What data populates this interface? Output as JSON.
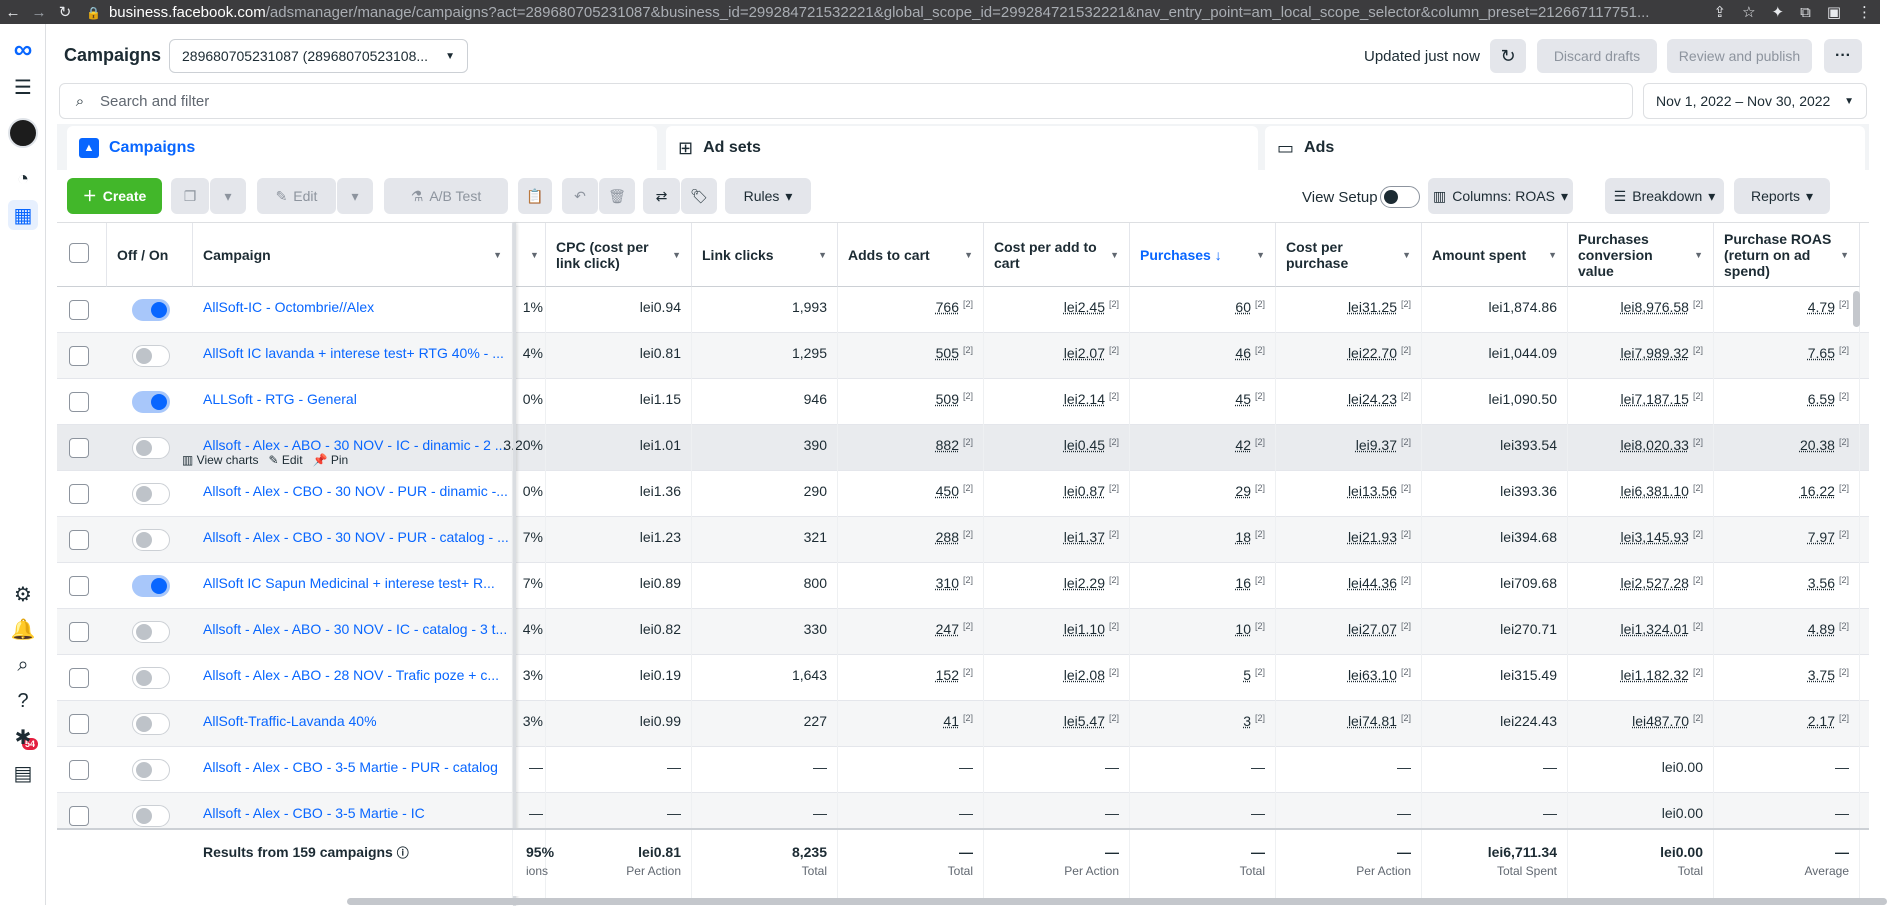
{
  "browser": {
    "url_host": "business.facebook.com",
    "url_rest": "/adsmanager/manage/campaigns?act=289680705231087&business_id=299284721532221&global_scope_id=299284721532221&nav_entry_point=am_local_scope_selector&column_preset=212667117751..."
  },
  "header": {
    "title": "Campaigns",
    "account": "289680705231087 (28968070523108...",
    "updated": "Updated just now",
    "discard_label": "Discard drafts",
    "publish_label": "Review and publish",
    "more_label": "···"
  },
  "rail": {
    "notification_count": "54"
  },
  "search": {
    "placeholder": "Search and filter",
    "date_range": "Nov 1, 2022 – Nov 30, 2022"
  },
  "level_tabs": {
    "campaigns": "Campaigns",
    "adsets": "Ad sets",
    "ads": "Ads"
  },
  "toolbar": {
    "create": "Create",
    "edit": "Edit",
    "ab_test": "A/B Test",
    "rules": "Rules",
    "view_setup": "View Setup",
    "columns": "Columns: ROAS",
    "breakdown": "Breakdown",
    "reports": "Reports"
  },
  "columns": {
    "off_on": "Off / On",
    "campaign": "Campaign",
    "cpc": "CPC (cost per link click)",
    "link_clicks": "Link clicks",
    "adds_to_cart": "Adds to cart",
    "cost_per_add": "Cost per add to cart",
    "purchases": "Purchases ↓",
    "cost_per_purchase": "Cost per purchase",
    "amount_spent": "Amount spent",
    "conv_value": "Purchases conversion value",
    "roas": "Purchase ROAS (return on ad spend)"
  },
  "row_actions": {
    "view_charts": "View charts",
    "edit": "Edit",
    "pin": "Pin"
  },
  "attribution_mark": "[2]",
  "rows": [
    {
      "on": true,
      "name": "AllSoft-IC - Octombrie//Alex",
      "ctr": "1%",
      "cpc": "lei0.94",
      "clicks": "1,993",
      "adds": "766",
      "cpa": "lei2.45",
      "purchases": "60",
      "cpp": "lei31.25",
      "spent": "lei1,874.86",
      "value": "lei8,976.58",
      "roas": "4.79"
    },
    {
      "on": false,
      "name": "AllSoft IC lavanda + interese test+ RTG 40% - ...",
      "ctr": "4%",
      "cpc": "lei0.81",
      "clicks": "1,295",
      "adds": "505",
      "cpa": "lei2.07",
      "purchases": "46",
      "cpp": "lei22.70",
      "spent": "lei1,044.09",
      "value": "lei7,989.32",
      "roas": "7.65"
    },
    {
      "on": true,
      "name": "ALLSoft - RTG - General",
      "ctr": "0%",
      "cpc": "lei1.15",
      "clicks": "946",
      "adds": "509",
      "cpa": "lei2.14",
      "purchases": "45",
      "cpp": "lei24.23",
      "spent": "lei1,090.50",
      "value": "lei7,187.15",
      "roas": "6.59"
    },
    {
      "on": false,
      "name": "Allsoft - Alex - ABO - 30 NOV - IC - dinamic - 2 ...",
      "ctr": "3.20%",
      "cpc": "lei1.01",
      "clicks": "390",
      "adds": "882",
      "cpa": "lei0.45",
      "purchases": "42",
      "cpp": "lei9.37",
      "spent": "lei393.54",
      "value": "lei8,020.33",
      "roas": "20.38"
    },
    {
      "on": false,
      "name": "Allsoft - Alex - CBO - 30 NOV - PUR - dinamic -...",
      "ctr": "0%",
      "cpc": "lei1.36",
      "clicks": "290",
      "adds": "450",
      "cpa": "lei0.87",
      "purchases": "29",
      "cpp": "lei13.56",
      "spent": "lei393.36",
      "value": "lei6,381.10",
      "roas": "16.22"
    },
    {
      "on": false,
      "name": "Allsoft - Alex - CBO - 30 NOV - PUR - catalog - ...",
      "ctr": "7%",
      "cpc": "lei1.23",
      "clicks": "321",
      "adds": "288",
      "cpa": "lei1.37",
      "purchases": "18",
      "cpp": "lei21.93",
      "spent": "lei394.68",
      "value": "lei3,145.93",
      "roas": "7.97"
    },
    {
      "on": true,
      "name": "AllSoft IC Sapun Medicinal + interese test+ R...",
      "ctr": "7%",
      "cpc": "lei0.89",
      "clicks": "800",
      "adds": "310",
      "cpa": "lei2.29",
      "purchases": "16",
      "cpp": "lei44.36",
      "spent": "lei709.68",
      "value": "lei2,527.28",
      "roas": "3.56"
    },
    {
      "on": false,
      "name": "Allsoft - Alex - ABO - 30 NOV - IC - catalog - 3 t...",
      "ctr": "4%",
      "cpc": "lei0.82",
      "clicks": "330",
      "adds": "247",
      "cpa": "lei1.10",
      "purchases": "10",
      "cpp": "lei27.07",
      "spent": "lei270.71",
      "value": "lei1,324.01",
      "roas": "4.89"
    },
    {
      "on": false,
      "name": "Allsoft - Alex - ABO - 28 NOV - Trafic poze + c...",
      "ctr": "3%",
      "cpc": "lei0.19",
      "clicks": "1,643",
      "adds": "152",
      "cpa": "lei2.08",
      "purchases": "5",
      "cpp": "lei63.10",
      "spent": "lei315.49",
      "value": "lei1,182.32",
      "roas": "3.75"
    },
    {
      "on": false,
      "name": "AllSoft-Traffic-Lavanda 40%",
      "ctr": "3%",
      "cpc": "lei0.99",
      "clicks": "227",
      "adds": "41",
      "cpa": "lei5.47",
      "purchases": "3",
      "cpp": "lei74.81",
      "spent": "lei224.43",
      "value": "lei487.70",
      "roas": "2.17"
    },
    {
      "on": false,
      "name": "Allsoft - Alex - CBO - 3-5 Martie - PUR - catalog",
      "ctr": "—",
      "cpc": "—",
      "clicks": "—",
      "adds": "—",
      "cpa": "—",
      "purchases": "—",
      "cpp": "—",
      "spent": "—",
      "value": "lei0.00",
      "roas": "—"
    },
    {
      "on": false,
      "name": "Allsoft - Alex - CBO - 3-5 Martie - IC",
      "ctr": "—",
      "cpc": "—",
      "clicks": "—",
      "adds": "—",
      "cpa": "—",
      "purchases": "—",
      "cpp": "—",
      "spent": "—",
      "value": "lei0.00",
      "roas": "—"
    }
  ],
  "footer": {
    "results": "Results from 159 campaigns",
    "ctr": "95%",
    "ctr_label": "ions",
    "cpc": "lei0.81",
    "cpc_label": "Per Action",
    "clicks": "8,235",
    "clicks_label": "Total",
    "adds": "—",
    "adds_label": "Total",
    "cpa": "—",
    "cpa_label": "Per Action",
    "purchases": "—",
    "purchases_label": "Total",
    "cpp": "—",
    "cpp_label": "Per Action",
    "spent": "lei6,711.34",
    "spent_label": "Total Spent",
    "value": "lei0.00",
    "value_label": "Total",
    "roas": "—",
    "roas_label": "Average"
  }
}
